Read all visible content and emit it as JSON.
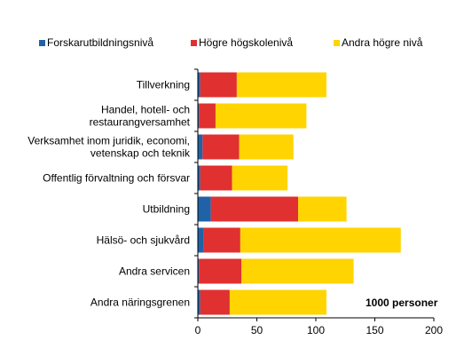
{
  "chart_data": {
    "type": "bar",
    "orientation": "horizontal",
    "stacked": true,
    "categories": [
      [
        "Tillverkning"
      ],
      [
        "Handel, hotell- och",
        "restaurangversamhet"
      ],
      [
        "Verksamhet inom juridik, economi,",
        "vetenskap och teknik"
      ],
      [
        "Offentlig förvaltning och försvar"
      ],
      [
        "Utbildning"
      ],
      [
        "Hälsö- och sjukvård"
      ],
      [
        "Andra servicen"
      ],
      [
        "Andra näringsgrenen"
      ]
    ],
    "series": [
      {
        "name": "Forskarutbildningsnivå",
        "color": "#1f62a8",
        "values": [
          2,
          1,
          4,
          2,
          11,
          5,
          1,
          2
        ]
      },
      {
        "name": "Högre högskolenivå",
        "color": "#e03030",
        "values": [
          31,
          14,
          31,
          27,
          74,
          31,
          36,
          25
        ]
      },
      {
        "name": "Andra högre nivå",
        "color": "#ffd400",
        "values": [
          76,
          77,
          46,
          47,
          41,
          136,
          95,
          82
        ]
      }
    ],
    "xlim": [
      0,
      200
    ],
    "xticks": [
      0,
      50,
      100,
      150,
      200
    ],
    "annotation": "1000 personer",
    "legend_position": "top",
    "grid": false
  }
}
